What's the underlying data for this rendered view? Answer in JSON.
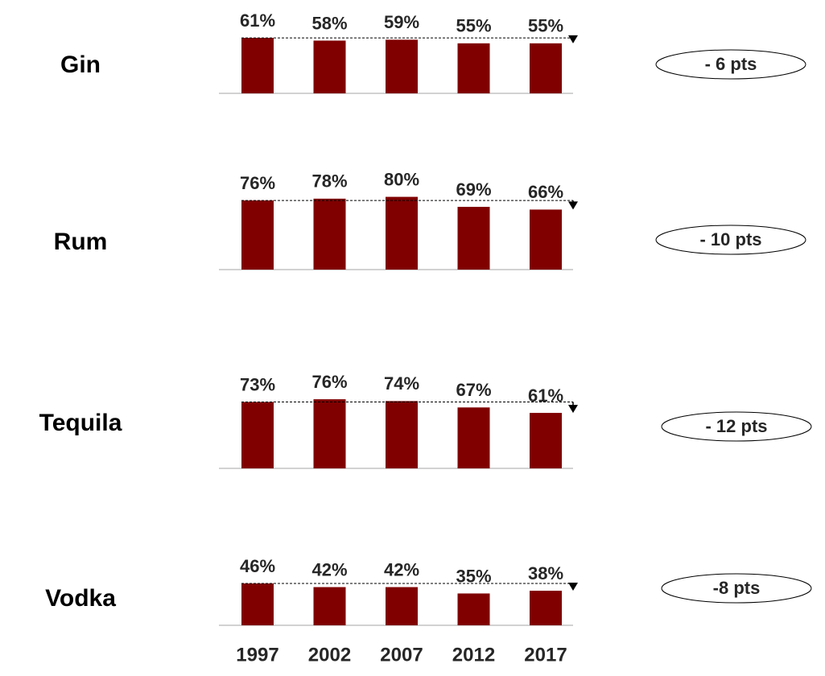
{
  "chart_data": {
    "type": "bar",
    "categories": [
      "1997",
      "2002",
      "2007",
      "2012",
      "2017"
    ],
    "ylim": [
      0,
      100
    ],
    "color": "#800000",
    "series": [
      {
        "name": "Gin",
        "values": [
          61,
          58,
          59,
          55,
          55
        ],
        "value_labels": [
          "61%",
          "58%",
          "59%",
          "55%",
          "55%"
        ],
        "annotation": "- 6 pts"
      },
      {
        "name": "Rum",
        "values": [
          76,
          78,
          80,
          69,
          66
        ],
        "value_labels": [
          "76%",
          "78%",
          "80%",
          "69%",
          "66%"
        ],
        "annotation": "- 10 pts"
      },
      {
        "name": "Tequila",
        "values": [
          73,
          76,
          74,
          67,
          61
        ],
        "value_labels": [
          "73%",
          "76%",
          "74%",
          "67%",
          "61%"
        ],
        "annotation": "- 12 pts"
      },
      {
        "name": "Vodka",
        "values": [
          46,
          42,
          42,
          35,
          38
        ],
        "value_labels": [
          "46%",
          "42%",
          "42%",
          "35%",
          "38%"
        ],
        "annotation": "-8 pts"
      }
    ]
  }
}
